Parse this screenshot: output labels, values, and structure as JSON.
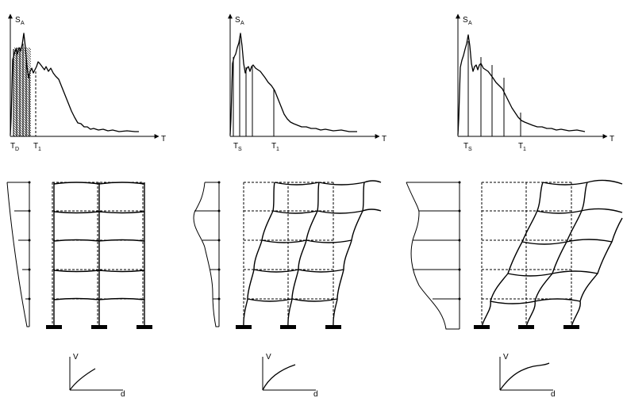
{
  "panels": [
    {
      "id": "left",
      "sa_label": "S",
      "sa_sub": "A",
      "t_label": "T",
      "t0_label": "T",
      "t0_sub": "D",
      "t1_label": "T",
      "t1_sub": "1",
      "v_label": "V",
      "d_label": "d"
    },
    {
      "id": "middle",
      "sa_label": "S",
      "sa_sub": "A",
      "t_label": "T",
      "t0_label": "T",
      "t0_sub": "S",
      "t1_label": "T",
      "t1_sub": "1",
      "v_label": "V",
      "d_label": "d"
    },
    {
      "id": "right",
      "sa_label": "S",
      "sa_sub": "A",
      "t_label": "T",
      "t0_label": "T",
      "t0_sub": "S",
      "t1_label": "T",
      "t1_sub": "1",
      "v_label": "V",
      "d_label": "d"
    }
  ]
}
